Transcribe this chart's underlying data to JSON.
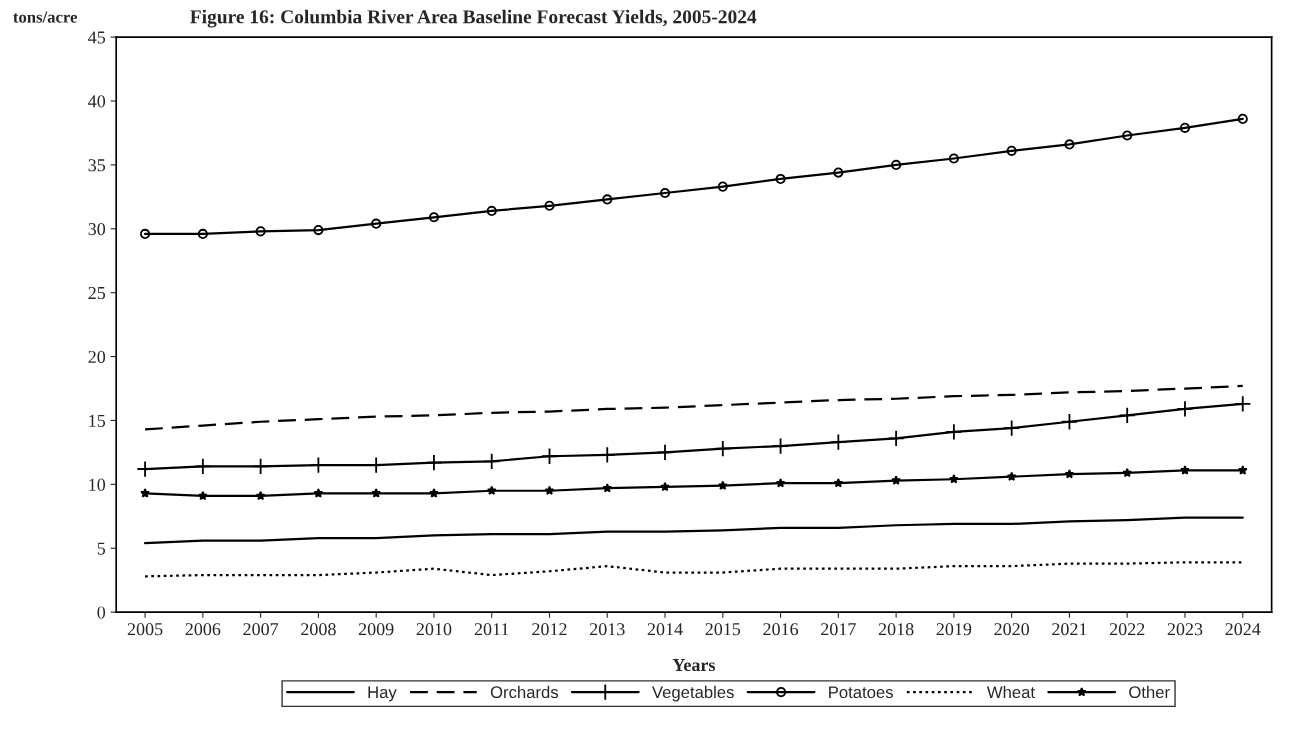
{
  "chart_data": {
    "type": "line",
    "title": "Figure 16: Columbia River Area Baseline Forecast Yields, 2005-2024",
    "ylabel": "tons/acre",
    "xlabel": "Years",
    "categories": [
      "2005",
      "2006",
      "2007",
      "2008",
      "2009",
      "2010",
      "2011",
      "2012",
      "2013",
      "2014",
      "2015",
      "2016",
      "2017",
      "2018",
      "2019",
      "2020",
      "2021",
      "2022",
      "2023",
      "2024"
    ],
    "ylim": [
      0,
      45
    ],
    "yticks": [
      0,
      5,
      10,
      15,
      20,
      25,
      30,
      35,
      40,
      45
    ],
    "grid": false,
    "legend": "bottom",
    "series": [
      {
        "name": "Hay",
        "color": "#000000",
        "line_style": "solid",
        "marker": "none",
        "values": [
          5.4,
          5.6,
          5.6,
          5.8,
          5.8,
          6.0,
          6.1,
          6.1,
          6.3,
          6.3,
          6.4,
          6.6,
          6.6,
          6.8,
          6.9,
          6.9,
          7.1,
          7.2,
          7.4,
          7.4
        ]
      },
      {
        "name": "Orchards",
        "color": "#000000",
        "line_style": "dashed",
        "marker": "none",
        "values": [
          14.3,
          14.6,
          14.9,
          15.1,
          15.3,
          15.4,
          15.6,
          15.7,
          15.9,
          16.0,
          16.2,
          16.4,
          16.6,
          16.7,
          16.9,
          17.0,
          17.2,
          17.3,
          17.5,
          17.7
        ]
      },
      {
        "name": "Vegetables",
        "color": "#000000",
        "line_style": "solid",
        "marker": "cross",
        "values": [
          11.2,
          11.4,
          11.4,
          11.5,
          11.5,
          11.7,
          11.8,
          12.2,
          12.3,
          12.5,
          12.8,
          13.0,
          13.3,
          13.6,
          14.1,
          14.4,
          14.9,
          15.4,
          15.9,
          16.3
        ]
      },
      {
        "name": "Potatoes",
        "color": "#000000",
        "line_style": "solid",
        "marker": "circle",
        "values": [
          29.6,
          29.6,
          29.8,
          29.9,
          30.4,
          30.9,
          31.4,
          31.8,
          32.3,
          32.8,
          33.3,
          33.9,
          34.4,
          35.0,
          35.5,
          36.1,
          36.6,
          37.3,
          37.9,
          38.6
        ]
      },
      {
        "name": "Wheat",
        "color": "#000000",
        "line_style": "dotted",
        "marker": "none",
        "values": [
          2.8,
          2.9,
          2.9,
          2.9,
          3.1,
          3.4,
          2.9,
          3.2,
          3.6,
          3.1,
          3.1,
          3.4,
          3.4,
          3.4,
          3.6,
          3.6,
          3.8,
          3.8,
          3.9,
          3.9
        ]
      },
      {
        "name": "Other",
        "color": "#000000",
        "line_style": "solid",
        "marker": "star",
        "values": [
          9.3,
          9.1,
          9.1,
          9.3,
          9.3,
          9.3,
          9.5,
          9.5,
          9.7,
          9.8,
          9.9,
          10.1,
          10.1,
          10.3,
          10.4,
          10.6,
          10.8,
          10.9,
          11.1,
          11.1
        ]
      }
    ]
  }
}
